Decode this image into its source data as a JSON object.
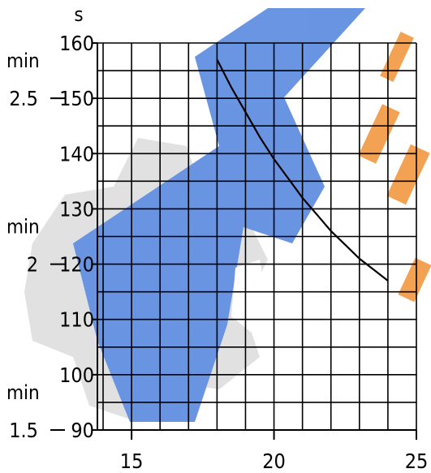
{
  "chart_data": {
    "type": "line",
    "title": "",
    "xlabel": "",
    "ylabel": "s",
    "x_ticks": [
      15,
      20,
      25
    ],
    "xlim": [
      13.8,
      25
    ],
    "y_ticks": [
      90,
      100,
      110,
      120,
      130,
      140,
      150,
      160
    ],
    "ylim": [
      90,
      160
    ],
    "grid": true,
    "minute_markers": [
      {
        "unit": "min",
        "value": "2.5",
        "y_seconds": 150
      },
      {
        "unit": "min",
        "value": "2",
        "y_seconds": 120
      },
      {
        "unit": "min",
        "value": "1.5",
        "y_seconds": 90
      }
    ],
    "series": [
      {
        "x": [
          18.0,
          18.5,
          19.0,
          19.5,
          20.0,
          20.5,
          21.0,
          21.5,
          22.0,
          22.5,
          23.0,
          23.5,
          24.0
        ],
        "y": [
          157.0,
          152.0,
          147.5,
          143.0,
          139.0,
          135.5,
          132.0,
          129.0,
          126.0,
          123.5,
          121.0,
          119.0,
          117.0
        ]
      }
    ]
  },
  "colors": {
    "ink": "#000000",
    "watermark_blue": "#4a7ed8",
    "watermark_gray": "#d9d9d9",
    "watermark_orange": "#f08a2c"
  }
}
